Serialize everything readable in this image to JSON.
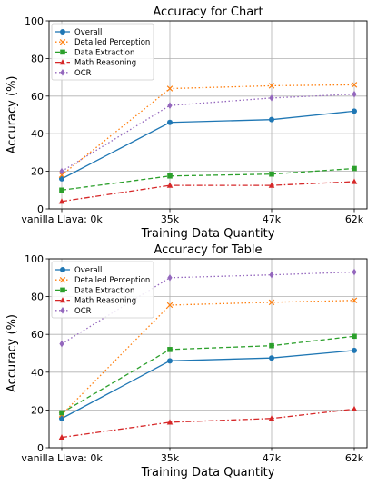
{
  "chart_data": [
    {
      "type": "line",
      "title": "Accuracy for Chart",
      "xlabel": "Training Data Quantity",
      "ylabel": "Accuracy (%)",
      "categories": [
        "vanilla Llava: 0k",
        "35k",
        "47k",
        "62k"
      ],
      "ylim": [
        0,
        100
      ],
      "yticks": [
        "0",
        "20",
        "40",
        "60",
        "80",
        "100"
      ],
      "grid": true,
      "legend_position": "top-left",
      "series": [
        {
          "name": "Overall",
          "color": "#1f77b4",
          "marker": "circle",
          "dash": "solid",
          "values": [
            16,
            46,
            47.5,
            52
          ]
        },
        {
          "name": "Detailed Perception",
          "color": "#ff7f0e",
          "marker": "x",
          "dash": "dotted",
          "values": [
            18,
            64,
            65.5,
            66
          ]
        },
        {
          "name": "Data Extraction",
          "color": "#2ca02c",
          "marker": "square",
          "dash": "dashed",
          "values": [
            10,
            17.5,
            18.5,
            21.5
          ]
        },
        {
          "name": "Math Reasoning",
          "color": "#d62728",
          "marker": "triangle",
          "dash": "dashdot",
          "values": [
            4,
            12.5,
            12.5,
            14.5
          ]
        },
        {
          "name": "OCR",
          "color": "#9467bd",
          "marker": "diamond",
          "dash": "dotted",
          "values": [
            20,
            55,
            59,
            61
          ]
        }
      ]
    },
    {
      "type": "line",
      "title": "Accuracy for Table",
      "xlabel": "Training Data Quantity",
      "ylabel": "Accuracy (%)",
      "categories": [
        "vanilla Llava: 0k",
        "35k",
        "47k",
        "62k"
      ],
      "ylim": [
        0,
        100
      ],
      "yticks": [
        "0",
        "20",
        "40",
        "60",
        "80",
        "100"
      ],
      "grid": true,
      "legend_position": "top-left",
      "series": [
        {
          "name": "Overall",
          "color": "#1f77b4",
          "marker": "circle",
          "dash": "solid",
          "values": [
            15.5,
            46,
            47.5,
            51.5
          ]
        },
        {
          "name": "Detailed Perception",
          "color": "#ff7f0e",
          "marker": "x",
          "dash": "dotted",
          "values": [
            17.5,
            75.5,
            77,
            78
          ]
        },
        {
          "name": "Data Extraction",
          "color": "#2ca02c",
          "marker": "square",
          "dash": "dashed",
          "values": [
            18.5,
            52,
            54,
            59
          ]
        },
        {
          "name": "Math Reasoning",
          "color": "#d62728",
          "marker": "triangle",
          "dash": "dashdot",
          "values": [
            5.5,
            13.5,
            15.5,
            20.5
          ]
        },
        {
          "name": "OCR",
          "color": "#9467bd",
          "marker": "diamond",
          "dash": "dotted",
          "values": [
            55,
            90,
            91.5,
            93
          ]
        }
      ]
    }
  ]
}
